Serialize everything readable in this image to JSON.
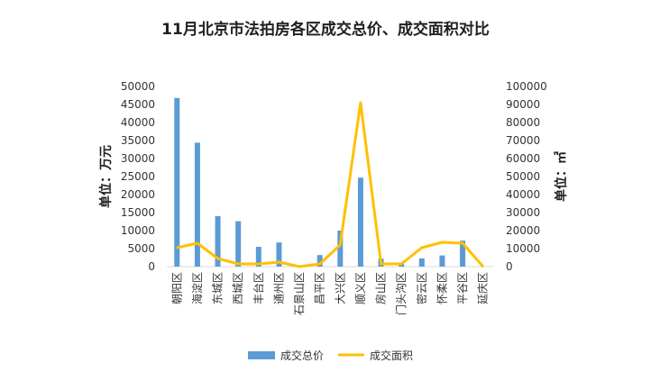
{
  "chart_data": {
    "type": "bar",
    "title": "11月北京市法拍房各区成交总价、成交面积对比",
    "categories": [
      "朝阳区",
      "海淀区",
      "东城区",
      "西城区",
      "丰台区",
      "通州区",
      "石景山区",
      "昌平区",
      "大兴区",
      "顺义区",
      "房山区",
      "门头沟区",
      "密云区",
      "怀柔区",
      "平谷区",
      "延庆区"
    ],
    "series": [
      {
        "name": "成交总价",
        "type": "bar",
        "axis": "left",
        "color": "#5B9BD5",
        "values": [
          46800,
          34400,
          14000,
          12600,
          5500,
          6700,
          0,
          3200,
          10000,
          24700,
          2200,
          1000,
          2300,
          3100,
          7200,
          0
        ]
      },
      {
        "name": "成交面积",
        "type": "line",
        "axis": "right",
        "color": "#FFC000",
        "values": [
          10500,
          13000,
          4500,
          1500,
          1500,
          2500,
          0,
          1500,
          12000,
          91000,
          1500,
          1500,
          10500,
          13500,
          13000,
          0
        ]
      }
    ],
    "yleft": {
      "label": "单位：万元",
      "min": 0,
      "max": 50000,
      "ticks": [
        "0",
        "5000",
        "10000",
        "15000",
        "20000",
        "25000",
        "30000",
        "35000",
        "40000",
        "45000",
        "50000"
      ]
    },
    "yright": {
      "label": "单位：㎡",
      "min": 0,
      "max": 100000,
      "ticks": [
        "0",
        "10000",
        "20000",
        "30000",
        "40000",
        "50000",
        "60000",
        "70000",
        "80000",
        "90000",
        "100000"
      ]
    },
    "legend": "bottom",
    "grid": false
  }
}
